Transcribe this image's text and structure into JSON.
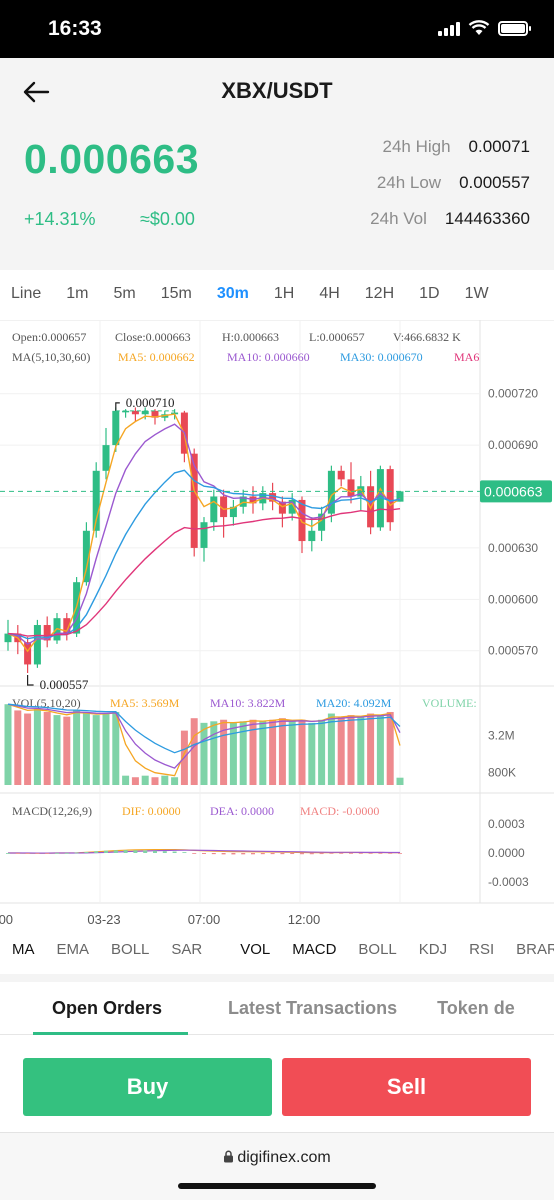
{
  "status_bar": {
    "time": "16:33"
  },
  "header": {
    "title": "XBX/USDT",
    "last_price": "0.000663",
    "change_pct": "+14.31%",
    "usd_value": "≈$0.00",
    "stats": [
      {
        "label": "24h High",
        "value": "0.00071"
      },
      {
        "label": "24h Low",
        "value": "0.000557"
      },
      {
        "label": "24h Vol",
        "value": "144463360"
      }
    ]
  },
  "intervals": [
    "Line",
    "1m",
    "5m",
    "15m",
    "30m",
    "1H",
    "4H",
    "12H",
    "1D",
    "1W"
  ],
  "active_interval": "30m",
  "chart": {
    "ohlc_text": {
      "open": "Open:0.000657",
      "close": "Close:0.000663",
      "high": "H:0.000663",
      "low": "L:0.000657",
      "vol": "V:466.6832 K"
    },
    "ma_legend": {
      "name": "MA(5,10,30,60)",
      "ma5": "MA5: 0.000662",
      "ma10": "MA10: 0.000660",
      "ma30": "MA30: 0.000670",
      "ma60": "MA6"
    },
    "vol_legend": {
      "name": "VOL(5,10,20)",
      "ma5": "MA5: 3.569M",
      "ma10": "MA10: 3.822M",
      "ma20": "MA20: 4.092M",
      "volume": "VOLUME:"
    },
    "macd_legend": {
      "name": "MACD(12,26,9)",
      "dif": "DIF: 0.0000",
      "dea": "DEA: 0.0000",
      "macd": "MACD: -0.0000"
    },
    "price_axis": [
      "0.000720",
      "0.000690",
      "0.000660",
      "0.000630",
      "0.000600",
      "0.000570"
    ],
    "current_price_label": "0.000663",
    "high_marker": "0.000710",
    "low_marker": "0.000557",
    "vol_axis": [
      "3.2M",
      "800K"
    ],
    "macd_axis": [
      "0.0003",
      "0.0000",
      "-0.0003"
    ],
    "time_axis": [
      ":00",
      "03-23",
      "07:00",
      "12:00"
    ],
    "colors": {
      "up": "#2ebd85",
      "down": "#e84855",
      "ma5": "#f5a623",
      "ma10": "#9b59d0",
      "ma30": "#2d9be0",
      "ma60": "#e0367a"
    }
  },
  "chart_data": {
    "type": "candlestick",
    "interval": "30m",
    "candles": [
      [
        0.000575,
        0.00058,
        0.000588,
        0.00057
      ],
      [
        0.00058,
        0.000575,
        0.000585,
        0.000568
      ],
      [
        0.000575,
        0.000562,
        0.000578,
        0.000557
      ],
      [
        0.000562,
        0.000585,
        0.000588,
        0.00056
      ],
      [
        0.000585,
        0.000576,
        0.00059,
        0.000572
      ],
      [
        0.000576,
        0.000589,
        0.000592,
        0.000574
      ],
      [
        0.000589,
        0.00058,
        0.000592,
        0.000576
      ],
      [
        0.00058,
        0.00061,
        0.000613,
        0.000578
      ],
      [
        0.00061,
        0.00064,
        0.000645,
        0.000608
      ],
      [
        0.00064,
        0.000675,
        0.00068,
        0.000636
      ],
      [
        0.000675,
        0.00069,
        0.0007,
        0.00067
      ],
      [
        0.00069,
        0.00071,
        0.000712,
        0.000686
      ],
      [
        0.00071,
        0.00071,
        0.000711,
        0.000706
      ],
      [
        0.00071,
        0.000708,
        0.000712,
        0.000704
      ],
      [
        0.000708,
        0.00071,
        0.000712,
        0.000705
      ],
      [
        0.00071,
        0.000706,
        0.000711,
        0.000702
      ],
      [
        0.000706,
        0.000708,
        0.00071,
        0.000704
      ],
      [
        0.000708,
        0.000709,
        0.000711,
        0.000705
      ],
      [
        0.000709,
        0.000685,
        0.00071,
        0.00068
      ],
      [
        0.000685,
        0.00063,
        0.000688,
        0.000625
      ],
      [
        0.00063,
        0.000645,
        0.000648,
        0.000622
      ],
      [
        0.000645,
        0.00066,
        0.000664,
        0.00064
      ],
      [
        0.00066,
        0.000648,
        0.000664,
        0.000636
      ],
      [
        0.000648,
        0.000654,
        0.000658,
        0.000643
      ],
      [
        0.000654,
        0.00066,
        0.000664,
        0.00065
      ],
      [
        0.00066,
        0.000656,
        0.000666,
        0.00065
      ],
      [
        0.000656,
        0.000662,
        0.000666,
        0.000652
      ],
      [
        0.000662,
        0.000657,
        0.000668,
        0.000652
      ],
      [
        0.000657,
        0.00065,
        0.00066,
        0.000642
      ],
      [
        0.00065,
        0.000658,
        0.000662,
        0.000646
      ],
      [
        0.000658,
        0.000634,
        0.00066,
        0.000627
      ],
      [
        0.000634,
        0.00064,
        0.000648,
        0.000628
      ],
      [
        0.00064,
        0.00065,
        0.000654,
        0.000634
      ],
      [
        0.00065,
        0.000675,
        0.000678,
        0.000645
      ],
      [
        0.000675,
        0.00067,
        0.000678,
        0.000666
      ],
      [
        0.00067,
        0.00066,
        0.00068,
        0.000656
      ],
      [
        0.00066,
        0.000666,
        0.000672,
        0.000652
      ],
      [
        0.000666,
        0.000642,
        0.000675,
        0.000638
      ],
      [
        0.000642,
        0.000676,
        0.000678,
        0.00064
      ],
      [
        0.000676,
        0.000645,
        0.000678,
        0.00064
      ],
      [
        0.000657,
        0.000663,
        0.000663,
        0.000657
      ]
    ],
    "volume": [
      5.2,
      4.8,
      4.6,
      4.9,
      4.7,
      4.5,
      4.4,
      4.8,
      4.6,
      4.5,
      4.6,
      4.7,
      0.6,
      0.5,
      0.6,
      0.5,
      0.6,
      0.5,
      3.5,
      4.3,
      4.0,
      4.1,
      4.2,
      4.0,
      4.1,
      4.2,
      4.1,
      4.2,
      4.3,
      4.1,
      4.2,
      4.0,
      4.2,
      4.6,
      4.4,
      4.5,
      4.4,
      4.6,
      4.5,
      4.7,
      0.47
    ],
    "ylim": [
      0.00055,
      0.000735
    ]
  },
  "indicators": {
    "main": [
      "MA",
      "EMA",
      "BOLL",
      "SAR"
    ],
    "sub": [
      "VOL",
      "MACD",
      "BOLL",
      "KDJ",
      "RSI",
      "BRAR"
    ],
    "active": [
      "MA",
      "VOL",
      "MACD"
    ]
  },
  "tabs": [
    "Open Orders",
    "Latest Transactions",
    "Token de"
  ],
  "actions": {
    "buy": "Buy",
    "sell": "Sell"
  },
  "browser": {
    "url": "digifinex.com"
  }
}
